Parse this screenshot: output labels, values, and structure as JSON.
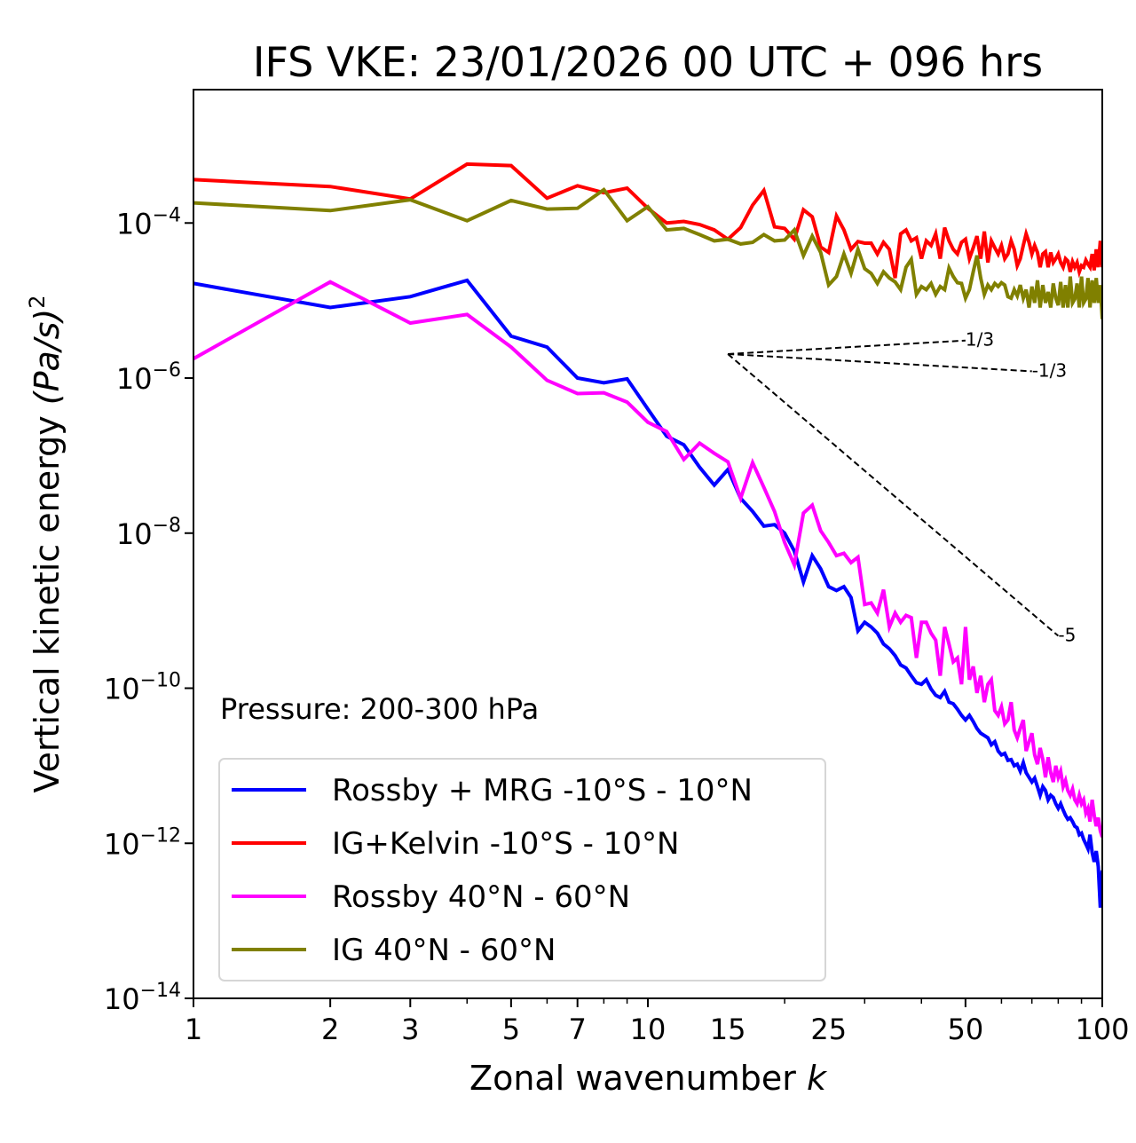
{
  "chart_data": {
    "type": "line",
    "title": "IFS VKE: 23/01/2026 00 UTC + 096 hrs",
    "xlabel": "Zonal wavenumber",
    "xlabel_italic": "k",
    "ylabel": "Vertical kinetic energy",
    "ylabel_unit": "(Pa/s)",
    "ylabel_unit_exp": "2",
    "xscale": "log",
    "yscale": "log",
    "xlim": [
      1,
      100
    ],
    "ylim_log10": [
      -14,
      -2.28
    ],
    "xticks": [
      1,
      2,
      3,
      5,
      7,
      10,
      15,
      25,
      50,
      100
    ],
    "xtick_labels": [
      "1",
      "2",
      "3",
      "5",
      "7",
      "10",
      "15",
      "25",
      "50",
      "100"
    ],
    "yticks_log10": [
      -4,
      -6,
      -8,
      -10,
      -12,
      -14
    ],
    "ytick_labels": [
      {
        "base": "10",
        "exp": "−4"
      },
      {
        "base": "10",
        "exp": "−6"
      },
      {
        "base": "10",
        "exp": "−8"
      },
      {
        "base": "10",
        "exp": "−10"
      },
      {
        "base": "10",
        "exp": "−12"
      },
      {
        "base": "10",
        "exp": "−14"
      }
    ],
    "grid": false,
    "annotation": "Pressure: 200-300 hPa",
    "legend_position": "lower-left",
    "x": [
      1,
      2,
      3,
      4,
      5,
      6,
      7,
      8,
      9,
      10,
      11,
      12,
      13,
      14,
      15,
      16,
      17,
      18,
      19,
      20,
      21,
      22,
      23,
      24,
      25,
      26,
      27,
      28,
      29,
      30,
      31,
      32,
      33,
      34,
      35,
      36,
      37,
      38,
      39,
      40,
      41,
      42,
      43,
      44,
      45,
      46,
      47,
      48,
      49,
      50,
      51,
      52,
      53,
      54,
      55,
      56,
      57,
      58,
      59,
      60,
      61,
      62,
      63,
      64,
      65,
      66,
      67,
      68,
      69,
      70,
      71,
      72,
      73,
      74,
      75,
      76,
      77,
      78,
      79,
      80,
      81,
      82,
      83,
      84,
      85,
      86,
      87,
      88,
      89,
      90,
      91,
      92,
      93,
      94,
      95,
      96,
      97,
      98,
      99,
      100
    ],
    "series": [
      {
        "name": "Rossby + MRG -10°S - 10°N",
        "color": "#0000ff",
        "log10_values": [
          -4.78,
          -5.09,
          -4.95,
          -4.74,
          -5.46,
          -5.6,
          -6.0,
          -6.06,
          -6.01,
          -6.4,
          -6.75,
          -6.86,
          -7.15,
          -7.38,
          -7.18,
          -7.55,
          -7.72,
          -7.91,
          -7.89,
          -8.0,
          -8.23,
          -8.63,
          -8.29,
          -8.46,
          -8.69,
          -8.74,
          -8.69,
          -8.83,
          -9.26,
          -9.15,
          -9.21,
          -9.29,
          -9.43,
          -9.49,
          -9.58,
          -9.7,
          -9.74,
          -9.84,
          -9.93,
          -9.95,
          -9.89,
          -10.01,
          -10.09,
          -10.12,
          -10.04,
          -10.18,
          -10.2,
          -10.27,
          -10.35,
          -10.41,
          -10.35,
          -10.43,
          -10.52,
          -10.58,
          -10.61,
          -10.64,
          -10.73,
          -10.69,
          -10.81,
          -10.86,
          -10.84,
          -10.93,
          -10.92,
          -11.0,
          -10.98,
          -11.07,
          -10.96,
          -11.09,
          -11.15,
          -11.21,
          -11.16,
          -11.27,
          -11.38,
          -11.27,
          -11.32,
          -11.44,
          -11.38,
          -11.41,
          -11.49,
          -11.55,
          -11.49,
          -11.57,
          -11.64,
          -11.69,
          -11.67,
          -11.72,
          -11.78,
          -11.8,
          -11.89,
          -11.87,
          -11.95,
          -12.01,
          -12.07,
          -11.89,
          -12.12,
          -12.24,
          -12.1,
          -12.3,
          -12.83,
          -12.35
        ]
      },
      {
        "name": "IG+Kelvin -10°S - 10°N",
        "color": "#ff0000",
        "log10_values": [
          -3.44,
          -3.53,
          -3.69,
          -3.24,
          -3.26,
          -3.68,
          -3.52,
          -3.61,
          -3.55,
          -3.81,
          -4.0,
          -3.98,
          -4.02,
          -4.09,
          -4.21,
          -4.06,
          -3.77,
          -3.58,
          -4.05,
          -4.07,
          -4.21,
          -3.83,
          -3.92,
          -4.31,
          -4.38,
          -3.91,
          -4.09,
          -4.34,
          -4.24,
          -4.26,
          -4.26,
          -4.4,
          -4.25,
          -4.34,
          -4.71,
          -4.14,
          -4.09,
          -4.23,
          -4.19,
          -4.46,
          -4.23,
          -4.29,
          -4.14,
          -4.46,
          -4.06,
          -4.23,
          -4.34,
          -4.4,
          -4.25,
          -4.21,
          -4.46,
          -4.32,
          -4.17,
          -4.46,
          -4.11,
          -4.51,
          -4.23,
          -4.32,
          -4.4,
          -4.29,
          -4.46,
          -4.4,
          -4.23,
          -4.34,
          -4.55,
          -4.46,
          -4.29,
          -4.14,
          -4.25,
          -4.4,
          -4.29,
          -4.38,
          -4.57,
          -4.4,
          -4.37,
          -4.57,
          -4.38,
          -4.51,
          -4.46,
          -4.4,
          -4.51,
          -4.57,
          -4.46,
          -4.49,
          -4.63,
          -4.5,
          -4.57,
          -4.51,
          -4.63,
          -4.55,
          -4.57,
          -4.48,
          -4.53,
          -4.57,
          -4.4,
          -4.61,
          -4.34,
          -4.57,
          -4.23,
          -4.57
        ]
      },
      {
        "name": "Rossby 40°N - 60°N",
        "color": "#ff00ff",
        "log10_values": [
          -5.75,
          -4.76,
          -5.29,
          -5.18,
          -5.6,
          -6.03,
          -6.2,
          -6.19,
          -6.31,
          -6.57,
          -6.69,
          -7.05,
          -6.84,
          -6.97,
          -7.08,
          -7.55,
          -7.09,
          -7.41,
          -7.72,
          -8.12,
          -8.41,
          -7.74,
          -7.64,
          -7.97,
          -8.12,
          -8.29,
          -8.26,
          -8.38,
          -8.31,
          -8.92,
          -8.9,
          -9.03,
          -8.73,
          -9.21,
          -9.03,
          -9.15,
          -9.06,
          -9.09,
          -9.61,
          -9.15,
          -9.15,
          -9.29,
          -9.38,
          -9.84,
          -9.21,
          -9.43,
          -9.66,
          -9.61,
          -9.95,
          -9.21,
          -9.89,
          -9.72,
          -10.06,
          -9.84,
          -10.18,
          -9.95,
          -9.89,
          -10.29,
          -10.35,
          -10.24,
          -10.46,
          -10.41,
          -10.18,
          -10.54,
          -10.64,
          -10.52,
          -10.41,
          -10.81,
          -10.69,
          -10.58,
          -10.86,
          -10.98,
          -10.77,
          -10.92,
          -11.15,
          -10.89,
          -11.09,
          -11.21,
          -11.0,
          -11.15,
          -11.07,
          -11.27,
          -11.19,
          -11.32,
          -11.38,
          -11.3,
          -11.44,
          -11.49,
          -11.38,
          -11.49,
          -11.44,
          -11.61,
          -11.55,
          -11.72,
          -11.44,
          -11.64,
          -11.78,
          -11.67,
          -11.84,
          -11.92
        ]
      },
      {
        "name": "IG 40°N - 60°N",
        "color": "#808000",
        "log10_values": [
          -3.74,
          -3.84,
          -3.7,
          -3.97,
          -3.71,
          -3.82,
          -3.81,
          -3.57,
          -3.97,
          -3.79,
          -4.09,
          -4.07,
          -4.15,
          -4.23,
          -4.21,
          -4.27,
          -4.25,
          -4.15,
          -4.23,
          -4.22,
          -4.09,
          -4.42,
          -4.17,
          -4.38,
          -4.8,
          -4.69,
          -4.4,
          -4.65,
          -4.34,
          -4.59,
          -4.65,
          -4.78,
          -4.63,
          -4.71,
          -4.76,
          -4.86,
          -4.57,
          -4.47,
          -4.92,
          -4.82,
          -4.86,
          -4.78,
          -4.92,
          -4.82,
          -4.86,
          -4.58,
          -4.69,
          -4.77,
          -4.78,
          -4.97,
          -4.86,
          -4.63,
          -4.42,
          -4.71,
          -4.92,
          -4.8,
          -4.86,
          -4.78,
          -4.82,
          -4.77,
          -4.8,
          -4.95,
          -4.97,
          -4.86,
          -4.94,
          -4.8,
          -4.97,
          -4.86,
          -5.09,
          -4.82,
          -5.03,
          -4.74,
          -5.09,
          -4.8,
          -5.03,
          -4.89,
          -5.09,
          -4.78,
          -4.97,
          -5.06,
          -4.76,
          -5.09,
          -4.8,
          -5.09,
          -4.69,
          -5.03,
          -4.98,
          -4.78,
          -5.09,
          -4.69,
          -5.03,
          -4.98,
          -4.71,
          -5.09,
          -4.74,
          -5.03,
          -4.71,
          -5.03,
          -4.8,
          -5.24
        ]
      }
    ],
    "reference_lines": [
      {
        "label": "1/3",
        "slope": 0.3333,
        "k_start": 15,
        "k_end": 50,
        "log10_start": -5.69
      },
      {
        "label": "-1/3",
        "slope": -0.3333,
        "k_start": 15,
        "k_end": 70,
        "log10_start": -5.69
      },
      {
        "label": "-5",
        "slope": -5,
        "k_start": 15,
        "k_end": 80,
        "log10_start": -5.69
      }
    ]
  }
}
